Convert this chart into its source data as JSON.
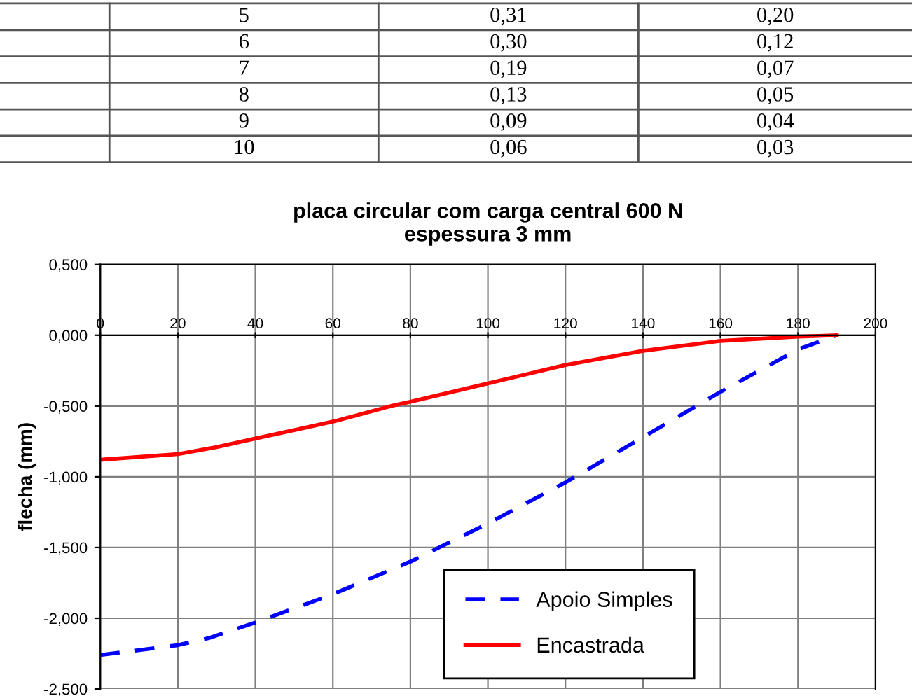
{
  "chart_data": {
    "type": "line",
    "title": "placa circular com carga central 600 N\nespessura 3 mm",
    "ylabel": "flecha (mm)",
    "annotations": [
      "5",
      "0,31",
      "0,20",
      "6",
      "0,30",
      "0,12",
      "7",
      "0,19",
      "0,07",
      "8",
      "0,13",
      "0,05",
      "9",
      "0,09",
      "0,04",
      "10",
      "0,06",
      "0,03"
    ],
    "series": [
      {
        "name": "Apoio Simples",
        "color": "#0000ff",
        "line_style": "dashed",
        "x": [
          0,
          20,
          28,
          40,
          60,
          80,
          100,
          120,
          140,
          160,
          180,
          190
        ],
        "values": [
          -2.26,
          -2.19,
          -2.14,
          -2.03,
          -1.83,
          -1.6,
          -1.33,
          -1.04,
          -0.72,
          -0.4,
          -0.1,
          0
        ]
      },
      {
        "name": "Encastrada",
        "color": "#ff0000",
        "line_style": "solid",
        "x": [
          0,
          20,
          30,
          40,
          50,
          60,
          75,
          80,
          100,
          120,
          140,
          160,
          180,
          190
        ],
        "values": [
          -0.88,
          -0.84,
          -0.79,
          -0.73,
          -0.67,
          -0.61,
          -0.5,
          -0.47,
          -0.34,
          -0.21,
          -0.11,
          -0.04,
          -0.01,
          0
        ]
      }
    ],
    "xlim": [
      0,
      200
    ],
    "xticks": [
      0,
      20,
      40,
      60,
      80,
      100,
      120,
      140,
      160,
      180,
      200
    ],
    "ylim": [
      -2.5,
      0.5
    ],
    "yticks": [
      {
        "value": 0.5,
        "label": "0,500"
      },
      {
        "value": 0,
        "label": "0,000"
      },
      {
        "value": -0.5,
        "label": "-0,500"
      },
      {
        "value": -1,
        "label": "-1,000"
      },
      {
        "value": -1.5,
        "label": "-1,500"
      },
      {
        "value": -2,
        "label": "-2,000"
      },
      {
        "value": -2.5,
        "label": "-2,500"
      }
    ],
    "grid": true,
    "legend": "bottom right",
    "marker": "none"
  }
}
